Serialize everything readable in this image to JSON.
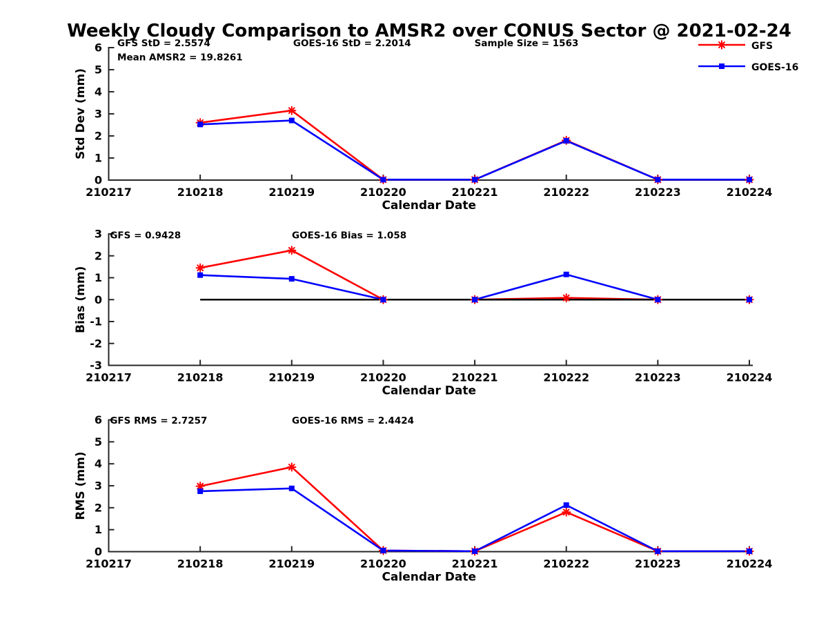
{
  "title": "Weekly Cloudy Comparison to AMSR2 over CONUS Sector @ 2021-02-24",
  "colors": {
    "gfs": "#ff0000",
    "goes16": "#0000ff",
    "axis": "#262626",
    "text": "#000000",
    "zero_line": "#000000"
  },
  "legend": {
    "position": "top-right",
    "items": [
      {
        "label": "GFS",
        "color": "#ff0000",
        "marker": "asterisk"
      },
      {
        "label": "GOES-16",
        "color": "#0000ff",
        "marker": "square"
      }
    ]
  },
  "chart_data": [
    {
      "type": "line",
      "panel": "std-dev",
      "xlabel": "Calendar Date",
      "ylabel": "Std Dev (mm)",
      "ylim": [
        0,
        6
      ],
      "yticks": [
        0,
        1,
        2,
        3,
        4,
        5,
        6
      ],
      "grid": false,
      "categories": [
        "210217",
        "210218",
        "210219",
        "210220",
        "210221",
        "210222",
        "210223",
        "210224"
      ],
      "annotations": [
        {
          "text": "GFS StD = 2.5574",
          "fx": 0.0135,
          "y": 6.22
        },
        {
          "text": "Mean AMSR2 = 19.8261",
          "fx": 0.0135,
          "y": 5.58
        },
        {
          "text": "GOES-16 StD = 2.2014",
          "fx": 0.288,
          "y": 6.22
        },
        {
          "text": "Sample Size = 1563",
          "fx": 0.571,
          "y": 6.22
        }
      ],
      "zero_line": false,
      "series": [
        {
          "name": "GFS",
          "color": "#ff0000",
          "marker": "asterisk",
          "values": [
            null,
            2.6,
            3.15,
            0.02,
            0.02,
            1.8,
            0.02,
            0.02
          ]
        },
        {
          "name": "GOES-16",
          "color": "#0000ff",
          "marker": "square",
          "values": [
            null,
            2.52,
            2.7,
            0.02,
            0.02,
            1.78,
            0.02,
            0.02
          ]
        }
      ]
    },
    {
      "type": "line",
      "panel": "bias",
      "xlabel": "Calendar Date",
      "ylabel": "Bias (mm)",
      "ylim": [
        -3,
        3
      ],
      "yticks": [
        -3,
        -2,
        -1,
        0,
        1,
        2,
        3
      ],
      "grid": false,
      "categories": [
        "210217",
        "210218",
        "210219",
        "210220",
        "210221",
        "210222",
        "210223",
        "210224"
      ],
      "annotations": [
        {
          "text": "GFS = 0.9428",
          "fx": 0.002,
          "y": 2.95
        },
        {
          "text": "GOES-16 Bias  = 1.058",
          "fx": 0.286,
          "y": 2.95
        }
      ],
      "zero_line": true,
      "series": [
        {
          "name": "GFS",
          "color": "#ff0000",
          "marker": "asterisk",
          "values": [
            null,
            1.45,
            2.25,
            0.0,
            0.0,
            0.08,
            0.0,
            0.0
          ]
        },
        {
          "name": "GOES-16",
          "color": "#0000ff",
          "marker": "square",
          "values": [
            null,
            1.12,
            0.95,
            0.0,
            0.0,
            1.15,
            0.0,
            0.0
          ]
        }
      ]
    },
    {
      "type": "line",
      "panel": "rms",
      "xlabel": "Calendar Date",
      "ylabel": "RMS (mm)",
      "ylim": [
        0,
        6
      ],
      "yticks": [
        0,
        1,
        2,
        3,
        4,
        5,
        6
      ],
      "grid": false,
      "categories": [
        "210217",
        "210218",
        "210219",
        "210220",
        "210221",
        "210222",
        "210223",
        "210224"
      ],
      "annotations": [
        {
          "text": "GFS RMS = 2.7257",
          "fx": 0.002,
          "y": 5.98
        },
        {
          "text": "GOES-16 RMS = 2.4424",
          "fx": 0.286,
          "y": 5.98
        }
      ],
      "zero_line": false,
      "series": [
        {
          "name": "GFS",
          "color": "#ff0000",
          "marker": "asterisk",
          "values": [
            null,
            2.98,
            3.85,
            0.05,
            0.02,
            1.8,
            0.02,
            0.02
          ]
        },
        {
          "name": "GOES-16",
          "color": "#0000ff",
          "marker": "square",
          "values": [
            null,
            2.75,
            2.88,
            0.05,
            0.02,
            2.12,
            0.02,
            0.02
          ]
        }
      ]
    }
  ]
}
